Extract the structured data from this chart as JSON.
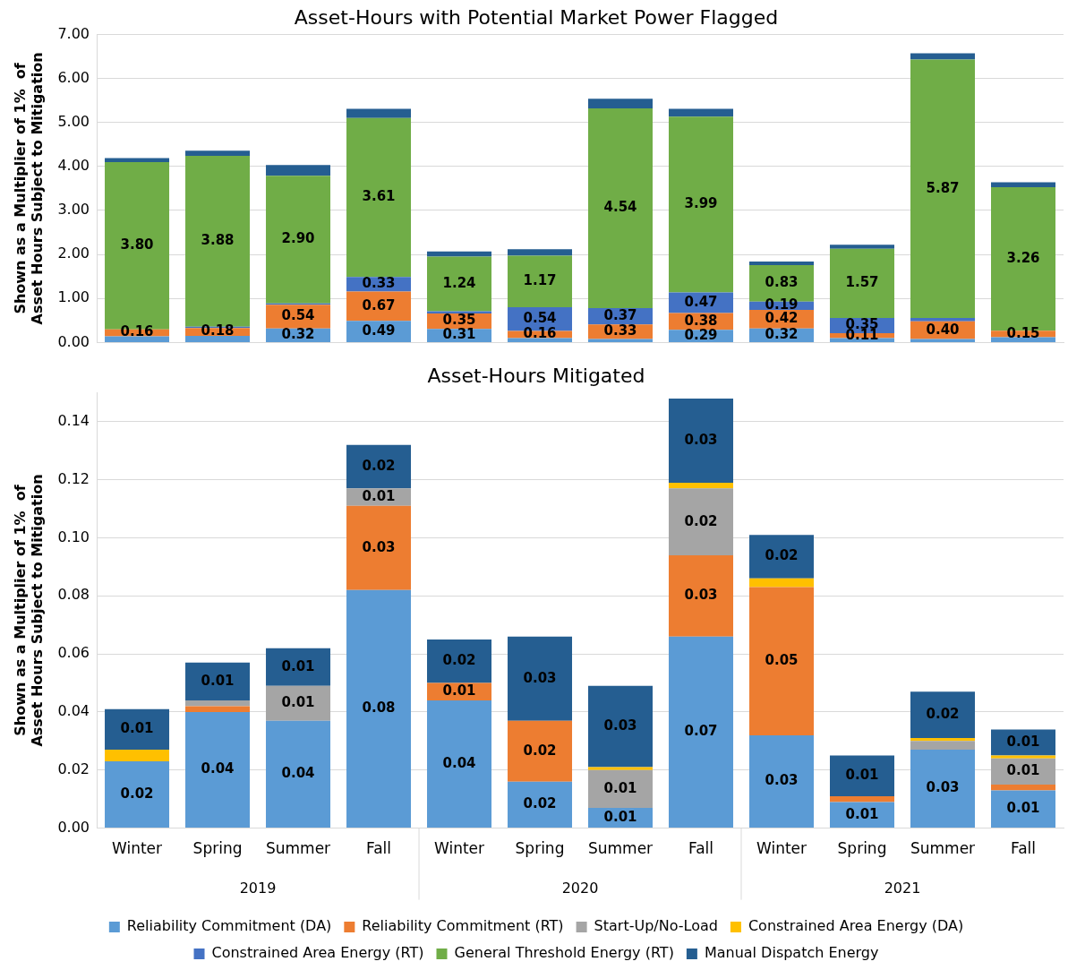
{
  "chart_data": [
    {
      "type": "bar",
      "title": "Asset-Hours with Potential Market Power Flagged",
      "ylabel": "Shown as a Multiplier of 1%  of Asset Hours Subject to Mitigation",
      "categories": [
        null,
        null,
        null,
        null,
        null,
        null,
        null,
        null,
        null,
        null,
        null,
        null
      ],
      "stacked": true,
      "grid": "y",
      "legend": false,
      "tick_labels": "y",
      "ylim": [
        0,
        7
      ],
      "yticks": [
        {
          "value": 0,
          "label": "0.00"
        },
        {
          "value": 1,
          "label": "1.00"
        },
        {
          "value": 2,
          "label": "2.00"
        },
        {
          "value": 3,
          "label": "3.00"
        },
        {
          "value": 4,
          "label": "4.00"
        },
        {
          "value": 5,
          "label": "5.00"
        },
        {
          "value": 6,
          "label": "6.00"
        },
        {
          "value": 7,
          "label": "7.00"
        }
      ],
      "series": [
        {
          "color": "#5b9bd5",
          "values": [
            0.14,
            0.15,
            0.32,
            0.49,
            0.31,
            0.1,
            0.08,
            0.29,
            0.32,
            0.1,
            0.08,
            0.12
          ],
          "value_labels": [
            null,
            null,
            "0.32",
            "0.49",
            "0.31",
            null,
            null,
            "0.29",
            "0.32",
            null,
            null,
            null
          ]
        },
        {
          "color": "#ed7d31",
          "values": [
            0.16,
            0.18,
            0.54,
            0.67,
            0.35,
            0.16,
            0.33,
            0.38,
            0.42,
            0.11,
            0.4,
            0.15
          ],
          "value_labels": [
            "0.16",
            "0.18",
            "0.54",
            "0.67",
            "0.35",
            "0.16",
            "0.33",
            "0.38",
            "0.42",
            "0.11",
            "0.40",
            "0.15"
          ]
        },
        {
          "color": "#4472c4",
          "values": [
            null,
            0.03,
            0.03,
            0.33,
            0.05,
            0.54,
            0.37,
            0.47,
            0.19,
            0.35,
            0.08,
            null
          ],
          "value_labels": [
            null,
            null,
            null,
            "0.33",
            null,
            "0.54",
            "0.37",
            "0.47",
            "0.19",
            "0.35",
            null,
            null
          ]
        },
        {
          "color": "#70ad47",
          "values": [
            3.8,
            3.88,
            2.9,
            3.61,
            1.24,
            1.17,
            4.54,
            3.99,
            0.83,
            1.57,
            5.87,
            3.26
          ],
          "value_labels": [
            "3.80",
            "3.88",
            "2.90",
            "3.61",
            "1.24",
            "1.17",
            "4.54",
            "3.99",
            "0.83",
            "1.57",
            "5.87",
            "3.26"
          ]
        },
        {
          "color": "#255e91",
          "values": [
            0.09,
            0.12,
            0.24,
            0.21,
            0.12,
            0.15,
            0.22,
            0.18,
            0.08,
            0.09,
            0.14,
            0.11
          ]
        }
      ]
    },
    {
      "type": "bar",
      "title": "Asset-Hours Mitigated",
      "ylabel": "Shown as a Multiplier of 1%  of Asset Hours Subject to Mitigation",
      "categories": [
        "Winter",
        "Spring",
        "Summer",
        "Fall",
        "Winter",
        "Spring",
        "Summer",
        "Fall",
        "Winter",
        "Spring",
        "Summer",
        "Fall"
      ],
      "annotations": [
        "2019",
        "2020",
        "2021"
      ],
      "stacked": true,
      "grid": "y",
      "legend": "bottom",
      "ylim": [
        0,
        0.15
      ],
      "yticks": [
        {
          "value": 0,
          "label": "0.00"
        },
        {
          "value": 0.02,
          "label": "0.02"
        },
        {
          "value": 0.04,
          "label": "0.04"
        },
        {
          "value": 0.06,
          "label": "0.06"
        },
        {
          "value": 0.08,
          "label": "0.08"
        },
        {
          "value": 0.1,
          "label": "0.10"
        },
        {
          "value": 0.12,
          "label": "0.12"
        },
        {
          "value": 0.14,
          "label": "0.14"
        }
      ],
      "series": [
        {
          "name": "Reliability Commitment (DA)",
          "color": "#5b9bd5",
          "values": [
            0.023,
            0.04,
            0.037,
            0.082,
            0.044,
            0.016,
            0.007,
            0.066,
            0.032,
            0.009,
            0.027,
            0.013
          ],
          "value_labels": [
            "0.02",
            "0.04",
            "0.04",
            "0.08",
            "0.04",
            "0.02",
            "0.01",
            "0.07",
            "0.03",
            "0.01",
            "0.03",
            "0.01"
          ]
        },
        {
          "name": "Reliability Commitment (RT)",
          "color": "#ed7d31",
          "values": [
            null,
            0.002,
            null,
            0.029,
            0.006,
            0.021,
            null,
            0.028,
            0.051,
            0.002,
            null,
            0.002
          ],
          "value_labels": [
            null,
            null,
            null,
            "0.03",
            "0.01",
            "0.02",
            null,
            "0.03",
            "0.05",
            null,
            null,
            null
          ]
        },
        {
          "name": "Start-Up/No-Load",
          "color": "#a5a5a5",
          "values": [
            null,
            0.002,
            0.012,
            0.006,
            null,
            null,
            0.013,
            0.023,
            null,
            null,
            0.003,
            0.009
          ],
          "value_labels": [
            null,
            null,
            "0.01",
            "0.01",
            null,
            null,
            "0.01",
            "0.02",
            null,
            null,
            null,
            "0.01"
          ]
        },
        {
          "name": "Constrained Area Energy (DA)",
          "color": "#ffc000",
          "values": [
            0.004,
            null,
            null,
            null,
            null,
            null,
            0.001,
            0.002,
            0.003,
            null,
            0.001,
            0.001
          ]
        },
        {
          "name": "Constrained Area Energy (RT)",
          "color": "#4472c4",
          "values": [
            null,
            null,
            null,
            null,
            null,
            null,
            null,
            null,
            null,
            null,
            null,
            null
          ]
        },
        {
          "name": "General Threshold Energy (RT)",
          "color": "#70ad47",
          "values": [
            null,
            null,
            null,
            null,
            null,
            null,
            null,
            null,
            null,
            null,
            null,
            null
          ]
        },
        {
          "name": "Manual Dispatch Energy",
          "color": "#255e91",
          "values": [
            0.014,
            0.013,
            0.013,
            0.015,
            0.015,
            0.029,
            0.028,
            0.029,
            0.015,
            0.014,
            0.016,
            0.009
          ],
          "value_labels": [
            "0.01",
            "0.01",
            "0.01",
            "0.02",
            "0.02",
            "0.03",
            "0.03",
            "0.03",
            "0.02",
            "0.01",
            "0.02",
            "0.01"
          ]
        }
      ]
    }
  ]
}
